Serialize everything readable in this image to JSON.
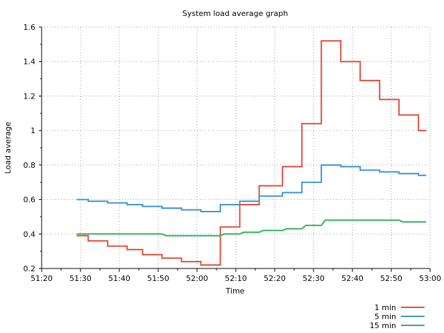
{
  "chart_data": {
    "type": "line",
    "title": "System load average graph",
    "xlabel": "Time",
    "ylabel": "Load average",
    "x_unit": "minutes:seconds",
    "xlim": [
      "51:20",
      "53:00"
    ],
    "ylim": [
      0.2,
      1.6
    ],
    "x_ticks": [
      "51:20",
      "51:30",
      "51:40",
      "51:50",
      "52:00",
      "52:10",
      "52:20",
      "52:30",
      "52:40",
      "52:50",
      "53:00"
    ],
    "y_ticks": [
      "0.2",
      "0.4",
      "0.6",
      "0.8",
      "1",
      "1.2",
      "1.4",
      "1.6"
    ],
    "grid": true,
    "legend_position": "bottom-right",
    "series": [
      {
        "name": "1 min",
        "color": "#e04f3a",
        "points": [
          [
            "51:29",
            0.39
          ],
          [
            "51:32",
            0.39
          ],
          [
            "51:32",
            0.36
          ],
          [
            "51:37",
            0.36
          ],
          [
            "51:37",
            0.33
          ],
          [
            "51:42",
            0.33
          ],
          [
            "51:42",
            0.31
          ],
          [
            "51:46",
            0.31
          ],
          [
            "51:46",
            0.28
          ],
          [
            "51:51",
            0.28
          ],
          [
            "51:51",
            0.26
          ],
          [
            "51:56",
            0.26
          ],
          [
            "51:56",
            0.24
          ],
          [
            "52:01",
            0.24
          ],
          [
            "52:01",
            0.22
          ],
          [
            "52:06",
            0.22
          ],
          [
            "52:06",
            0.44
          ],
          [
            "52:11",
            0.44
          ],
          [
            "52:11",
            0.57
          ],
          [
            "52:16",
            0.57
          ],
          [
            "52:16",
            0.68
          ],
          [
            "52:22",
            0.68
          ],
          [
            "52:22",
            0.79
          ],
          [
            "52:27",
            0.79
          ],
          [
            "52:27",
            1.04
          ],
          [
            "52:32",
            1.04
          ],
          [
            "52:32",
            1.52
          ],
          [
            "52:37",
            1.52
          ],
          [
            "52:37",
            1.4
          ],
          [
            "52:42",
            1.4
          ],
          [
            "52:42",
            1.29
          ],
          [
            "52:47",
            1.29
          ],
          [
            "52:47",
            1.18
          ],
          [
            "52:52",
            1.18
          ],
          [
            "52:52",
            1.09
          ],
          [
            "52:57",
            1.09
          ],
          [
            "52:57",
            1.0
          ],
          [
            "52:59",
            1.0
          ]
        ]
      },
      {
        "name": "5 min",
        "color": "#3b95d0",
        "points": [
          [
            "51:29",
            0.6
          ],
          [
            "51:32",
            0.6
          ],
          [
            "51:32",
            0.59
          ],
          [
            "51:37",
            0.59
          ],
          [
            "51:37",
            0.58
          ],
          [
            "51:42",
            0.58
          ],
          [
            "51:42",
            0.57
          ],
          [
            "51:46",
            0.57
          ],
          [
            "51:46",
            0.56
          ],
          [
            "51:51",
            0.56
          ],
          [
            "51:51",
            0.55
          ],
          [
            "51:56",
            0.55
          ],
          [
            "51:56",
            0.54
          ],
          [
            "52:01",
            0.54
          ],
          [
            "52:01",
            0.53
          ],
          [
            "52:06",
            0.53
          ],
          [
            "52:06",
            0.57
          ],
          [
            "52:11",
            0.57
          ],
          [
            "52:11",
            0.59
          ],
          [
            "52:16",
            0.59
          ],
          [
            "52:16",
            0.62
          ],
          [
            "52:22",
            0.62
          ],
          [
            "52:22",
            0.64
          ],
          [
            "52:27",
            0.64
          ],
          [
            "52:27",
            0.7
          ],
          [
            "52:32",
            0.7
          ],
          [
            "52:32",
            0.8
          ],
          [
            "52:37",
            0.8
          ],
          [
            "52:37",
            0.79
          ],
          [
            "52:42",
            0.79
          ],
          [
            "52:42",
            0.77
          ],
          [
            "52:47",
            0.77
          ],
          [
            "52:47",
            0.76
          ],
          [
            "52:52",
            0.76
          ],
          [
            "52:52",
            0.75
          ],
          [
            "52:57",
            0.75
          ],
          [
            "52:57",
            0.74
          ],
          [
            "52:59",
            0.74
          ]
        ]
      },
      {
        "name": "15 min",
        "color": "#2fb35a",
        "points": [
          [
            "51:29",
            0.4
          ],
          [
            "51:51",
            0.4
          ],
          [
            "51:52",
            0.39
          ],
          [
            "52:06",
            0.39
          ],
          [
            "52:07",
            0.4
          ],
          [
            "52:11",
            0.4
          ],
          [
            "52:12",
            0.41
          ],
          [
            "52:16",
            0.41
          ],
          [
            "52:17",
            0.42
          ],
          [
            "52:22",
            0.42
          ],
          [
            "52:23",
            0.43
          ],
          [
            "52:27",
            0.43
          ],
          [
            "52:28",
            0.45
          ],
          [
            "52:32",
            0.45
          ],
          [
            "52:33",
            0.48
          ],
          [
            "52:52",
            0.48
          ],
          [
            "52:53",
            0.47
          ],
          [
            "52:59",
            0.47
          ]
        ]
      }
    ]
  }
}
